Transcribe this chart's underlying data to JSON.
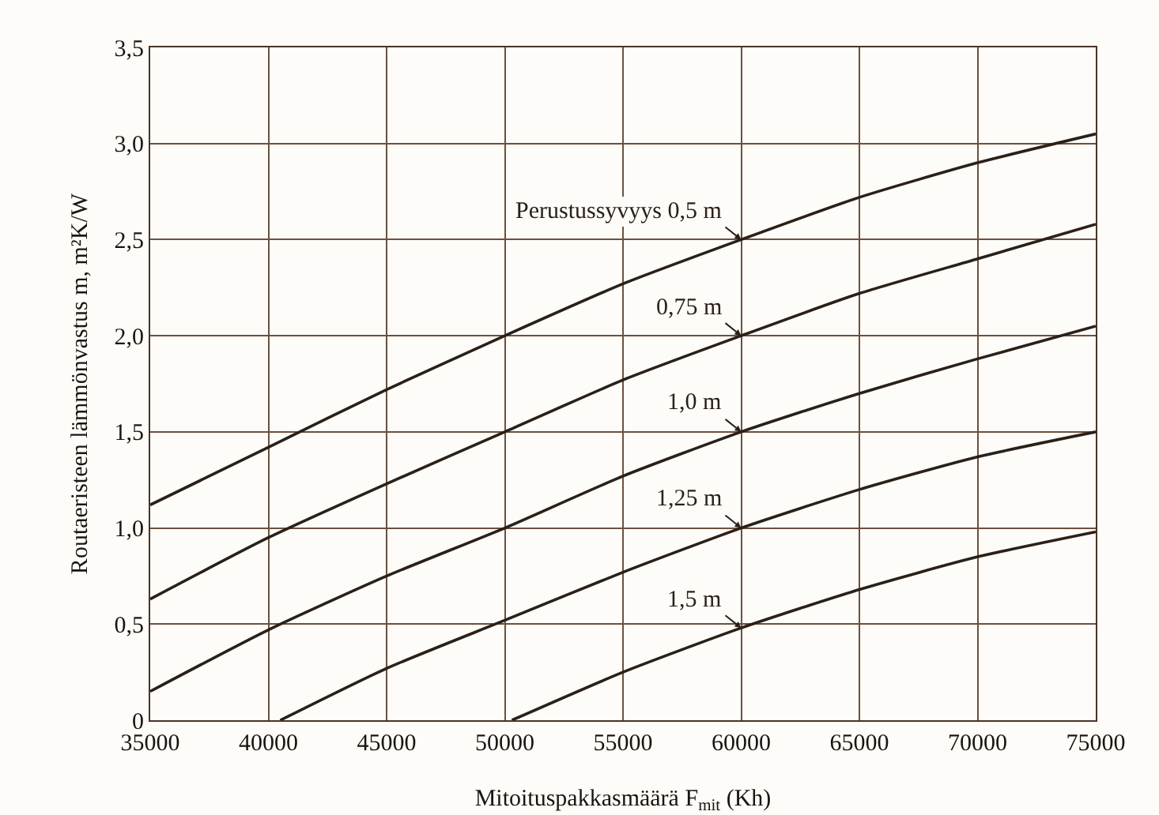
{
  "chart_data": {
    "type": "line",
    "xlabel": "Mitoituspakkasmäärä F$_{mit}$ (Kh)",
    "ylabel": "Routaeristeen lämmönvastus m, m²K/W",
    "xlim": [
      35000,
      75000
    ],
    "xticks": [
      35000,
      40000,
      45000,
      50000,
      55000,
      60000,
      65000,
      70000,
      75000
    ],
    "ylim": [
      0,
      3.5
    ],
    "yticks": [
      0,
      {
        "value": 0.5,
        "label": "0,5"
      },
      {
        "value": 1,
        "label": "1,0"
      },
      {
        "value": 1.5,
        "label": "1,5"
      },
      {
        "value": 2,
        "label": "2,0"
      },
      {
        "value": 2.5,
        "label": "2,5"
      },
      {
        "value": 3,
        "label": "3,0"
      },
      {
        "value": 3.5,
        "label": "3,5"
      }
    ],
    "grid": true,
    "legend": false,
    "marker": "none",
    "line_style": "solid",
    "series": [
      {
        "name": "Perustussyvyys 0,5 m",
        "color": "#2b2018",
        "x": [
          35000,
          40000,
          45000,
          50000,
          55000,
          60000,
          65000,
          70000,
          75000
        ],
        "values": [
          1.12,
          1.42,
          1.72,
          2.0,
          2.27,
          2.5,
          2.72,
          2.9,
          3.05
        ]
      },
      {
        "name": "0,75 m",
        "color": "#2b2018",
        "x": [
          35000,
          40000,
          45000,
          50000,
          55000,
          60000,
          65000,
          70000,
          75000
        ],
        "values": [
          0.63,
          0.95,
          1.23,
          1.5,
          1.77,
          2.0,
          2.22,
          2.4,
          2.58
        ]
      },
      {
        "name": "1,0 m",
        "color": "#2b2018",
        "x": [
          35000,
          40000,
          45000,
          50000,
          55000,
          60000,
          65000,
          70000,
          75000
        ],
        "values": [
          0.15,
          0.47,
          0.75,
          1.0,
          1.27,
          1.5,
          1.7,
          1.88,
          2.05
        ]
      },
      {
        "name": "1,25 m",
        "color": "#2b2018",
        "x": [
          40500,
          45000,
          50000,
          55000,
          60000,
          65000,
          70000,
          75000
        ],
        "values": [
          0,
          0.27,
          0.52,
          0.77,
          1.0,
          1.2,
          1.37,
          1.5
        ]
      },
      {
        "name": "1,5 m",
        "color": "#2b2018",
        "x": [
          50300,
          55000,
          60000,
          65000,
          70000,
          75000
        ],
        "values": [
          0,
          0.25,
          0.48,
          0.68,
          0.85,
          0.98
        ]
      }
    ]
  }
}
